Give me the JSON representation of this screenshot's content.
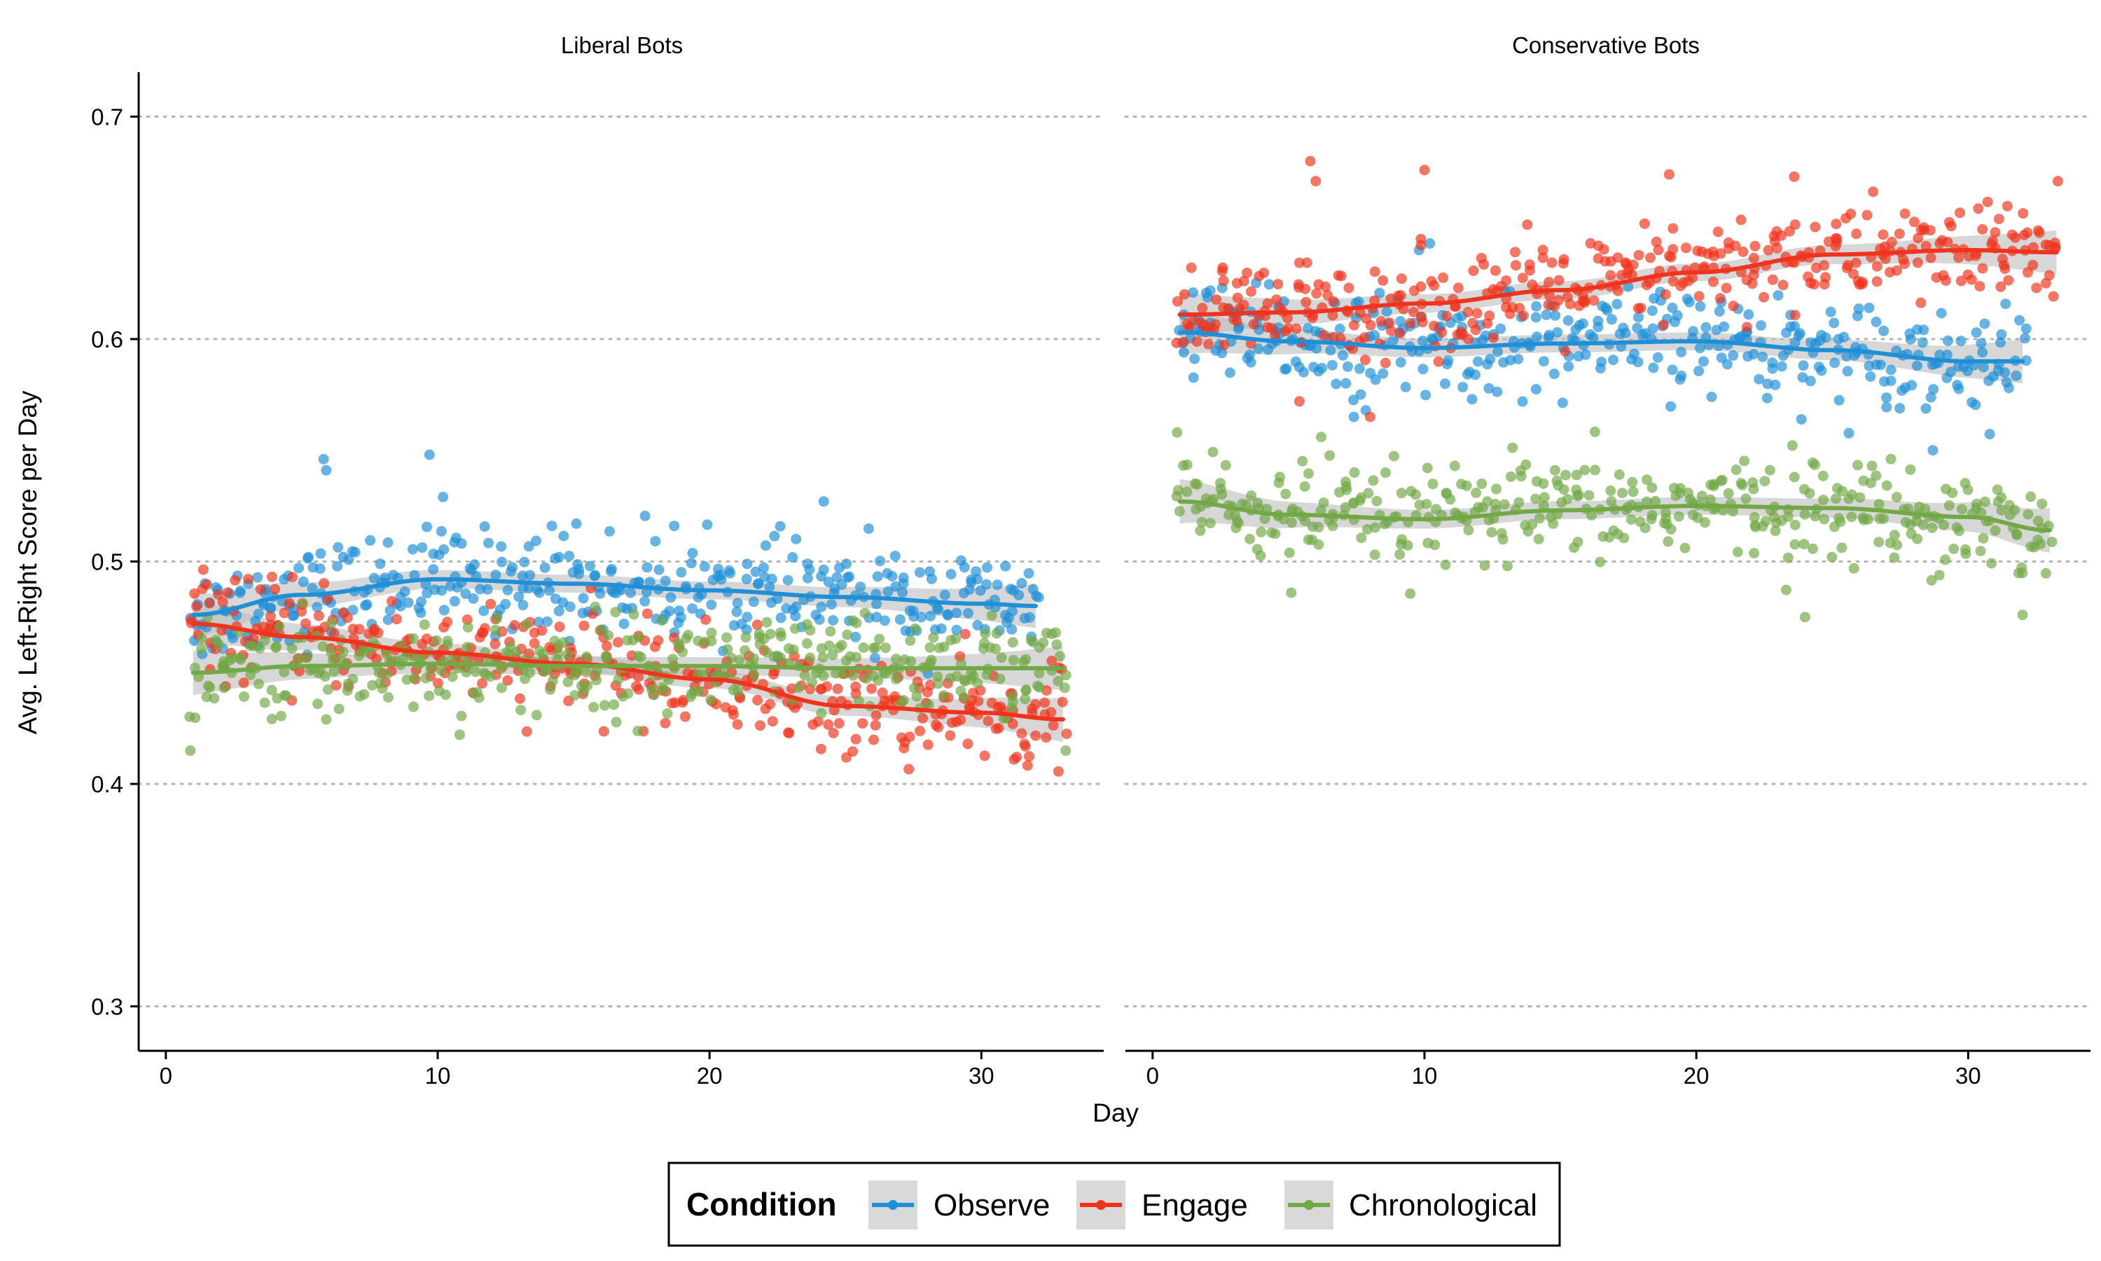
{
  "chart_data": {
    "type": "scatter",
    "facet_titles": [
      "Liberal Bots",
      "Conservative Bots"
    ],
    "xlabel": "Day",
    "ylabel": "Avg. Left-Right Score per Day",
    "xlim": [
      -1,
      34.5
    ],
    "ylim": [
      0.28,
      0.72
    ],
    "x_ticks": [
      0,
      10,
      20,
      30
    ],
    "y_ticks": [
      0.3,
      0.4,
      0.5,
      0.6,
      0.7
    ],
    "y_tick_labels": [
      "0.3",
      "0.4",
      "0.5",
      "0.6",
      "0.7"
    ],
    "grid": "horizontal dotted",
    "legend": {
      "title": "Condition",
      "position": "bottom",
      "entries": [
        "Observe",
        "Engage",
        "Chronological"
      ]
    },
    "colors": {
      "Observe": "#1f8fd6",
      "Engage": "#f0331c",
      "Chronological": "#72a845",
      "ribbon": "#bdbdbd"
    },
    "point_spread": 0.018,
    "panels": [
      {
        "title": "Liberal Bots",
        "series": [
          {
            "name": "Observe",
            "days": [
              1,
              32
            ],
            "trend_x": [
              1,
              5,
              10,
              15,
              20,
              25,
              30,
              32
            ],
            "trend_y": [
              0.476,
              0.485,
              0.492,
              0.49,
              0.487,
              0.484,
              0.481,
              0.48
            ],
            "outliers": [
              [
                5.8,
                0.546
              ],
              [
                5.9,
                0.541
              ],
              [
                9.7,
                0.548
              ],
              [
                10.2,
                0.529
              ],
              [
                24.2,
                0.527
              ],
              [
                18.7,
                0.516
              ],
              [
                15.1,
                0.517
              ],
              [
                14.2,
                0.516
              ]
            ]
          },
          {
            "name": "Engage",
            "days": [
              1,
              33
            ],
            "trend_x": [
              1,
              5,
              10,
              15,
              20,
              25,
              30,
              33
            ],
            "trend_y": [
              0.472,
              0.466,
              0.459,
              0.454,
              0.447,
              0.435,
              0.432,
              0.429
            ],
            "outliers": [
              [
                31.2,
                0.411
              ],
              [
                29.5,
                0.418
              ]
            ]
          },
          {
            "name": "Chronological",
            "days": [
              1,
              33
            ],
            "trend_x": [
              1,
              5,
              10,
              15,
              20,
              25,
              30,
              33
            ],
            "trend_y": [
              0.45,
              0.453,
              0.454,
              0.453,
              0.453,
              0.452,
              0.452,
              0.452
            ],
            "outliers": [
              [
                0.9,
                0.415
              ],
              [
                33.1,
                0.415
              ],
              [
                5.9,
                0.429
              ]
            ]
          }
        ]
      },
      {
        "title": "Conservative Bots",
        "series": [
          {
            "name": "Observe",
            "days": [
              1,
              32
            ],
            "trend_x": [
              1,
              5,
              10,
              15,
              20,
              25,
              30,
              32
            ],
            "trend_y": [
              0.603,
              0.599,
              0.596,
              0.598,
              0.599,
              0.595,
              0.59,
              0.59
            ],
            "outliers": [
              [
                9.8,
                0.64
              ],
              [
                10.2,
                0.643
              ],
              [
                28.7,
                0.55
              ],
              [
                7.4,
                0.565
              ]
            ]
          },
          {
            "name": "Engage",
            "days": [
              1,
              33.3
            ],
            "trend_x": [
              1,
              5,
              10,
              15,
              20,
              25,
              30,
              33.3
            ],
            "trend_y": [
              0.611,
              0.612,
              0.616,
              0.622,
              0.63,
              0.638,
              0.64,
              0.639
            ],
            "outliers": [
              [
                5.8,
                0.68
              ],
              [
                6.0,
                0.671
              ],
              [
                10.0,
                0.676
              ],
              [
                19.0,
                0.674
              ],
              [
                23.6,
                0.673
              ],
              [
                33.3,
                0.671
              ],
              [
                5.4,
                0.572
              ],
              [
                8.0,
                0.565
              ]
            ]
          },
          {
            "name": "Chronological",
            "days": [
              1,
              33
            ],
            "trend_x": [
              1,
              5,
              10,
              15,
              20,
              25,
              30,
              33
            ],
            "trend_y": [
              0.527,
              0.521,
              0.519,
              0.523,
              0.525,
              0.524,
              0.52,
              0.514
            ],
            "outliers": [
              [
                0.9,
                0.558
              ],
              [
                6.2,
                0.556
              ],
              [
                24.0,
                0.475
              ],
              [
                32.0,
                0.476
              ],
              [
                5.1,
                0.486
              ]
            ]
          }
        ]
      }
    ]
  }
}
